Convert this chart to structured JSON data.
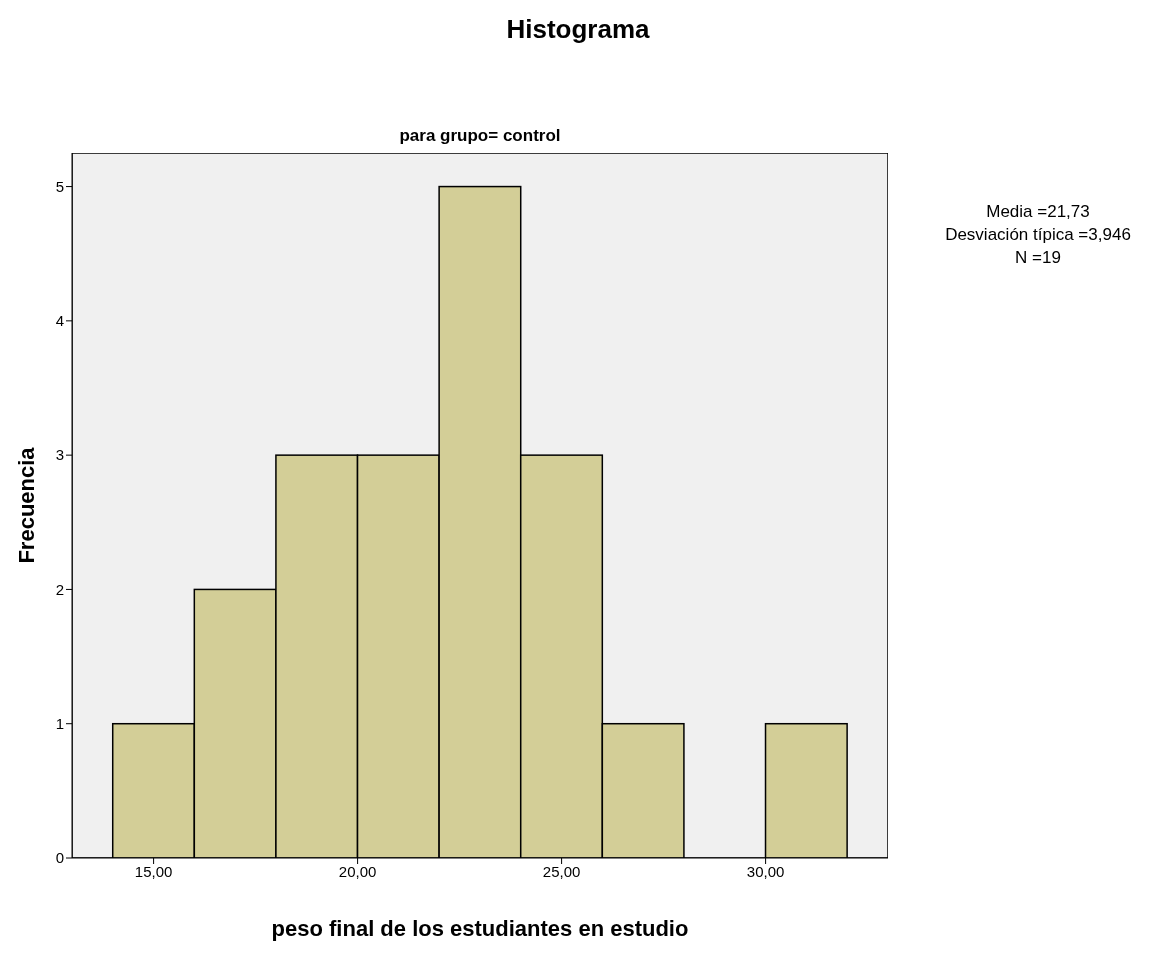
{
  "chart_data": {
    "type": "histogram",
    "title": "Histograma",
    "subtitle": "para grupo= control",
    "xlabel": "peso final de los estudiantes en estudio",
    "ylabel": "Frecuencia",
    "bins": [
      14,
      16,
      18,
      20,
      22,
      24,
      26,
      28,
      30,
      32
    ],
    "values": [
      1,
      2,
      3,
      3,
      5,
      3,
      1,
      0,
      1
    ],
    "color": "#d3ce97",
    "xlim": [
      13,
      33
    ],
    "xticks": [
      {
        "value": 15,
        "label": "15,00"
      },
      {
        "value": 20,
        "label": "20,00"
      },
      {
        "value": 25,
        "label": "25,00"
      },
      {
        "value": 30,
        "label": "30,00"
      }
    ],
    "ylim": [
      0,
      5.25
    ],
    "yticks": [
      0,
      1,
      2,
      3,
      4,
      5
    ],
    "grid": false,
    "annotations": [
      "Media =21,73",
      "Desviación típica =3,946",
      "N =19"
    ]
  }
}
